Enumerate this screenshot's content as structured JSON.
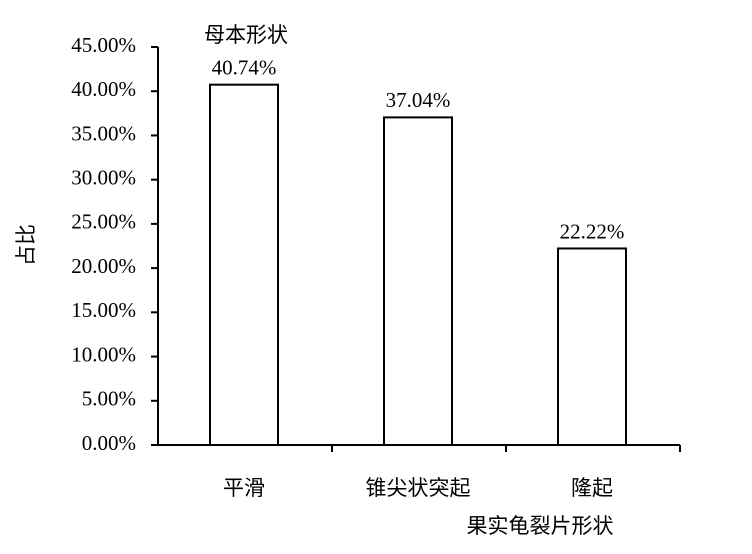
{
  "chart_data": {
    "type": "bar",
    "title": "母本形状",
    "x_label": "果实龟裂片形状",
    "y_label": "占比",
    "categories": [
      "平滑",
      "锥尖状突起",
      "隆起"
    ],
    "values": [
      40.74,
      37.04,
      22.22
    ],
    "value_labels": [
      "40.74%",
      "37.04%",
      "22.22%"
    ],
    "color": "#ffffff",
    "ylim": [
      0,
      45
    ],
    "yticks": [
      {
        "value": 0,
        "label": "0.00%"
      },
      {
        "value": 5,
        "label": "5.00%"
      },
      {
        "value": 10,
        "label": "10.00%"
      },
      {
        "value": 15,
        "label": "15.00%"
      },
      {
        "value": 20,
        "label": "20.00%"
      },
      {
        "value": 25,
        "label": "25.00%"
      },
      {
        "value": 30,
        "label": "30.00%"
      },
      {
        "value": 35,
        "label": "35.00%"
      },
      {
        "value": 40,
        "label": "40.00%"
      },
      {
        "value": 45,
        "label": "45.00%"
      }
    ]
  }
}
